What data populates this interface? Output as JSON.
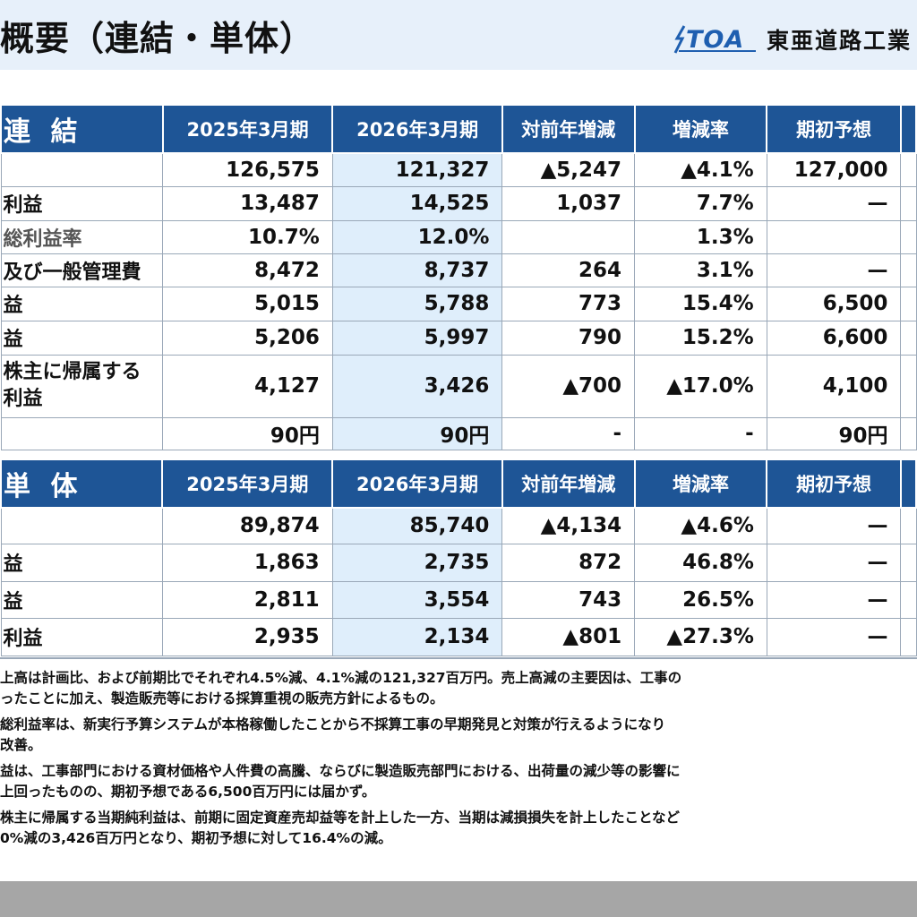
{
  "header": {
    "title": "概要（連結・単体）",
    "logo_text": "TOA",
    "company_name": "東亜道路工業"
  },
  "consolidated": {
    "section_label": "連 結",
    "columns": [
      "2025年3月期",
      "2026年3月期",
      "対前年増減",
      "増減率",
      "期初予想"
    ],
    "rows": [
      {
        "label": "",
        "values": [
          "126,575",
          "121,327",
          "▲5,247",
          "▲4.1%",
          "127,000"
        ]
      },
      {
        "label": "利益",
        "values": [
          "13,487",
          "14,525",
          "1,037",
          "7.7%",
          "—"
        ]
      },
      {
        "label": "総利益率",
        "values": [
          "10.7%",
          "12.0%",
          "",
          "1.3%",
          ""
        ]
      },
      {
        "label": "及び一般管理費",
        "values": [
          "8,472",
          "8,737",
          "264",
          "3.1%",
          "—"
        ]
      },
      {
        "label": "益",
        "values": [
          "5,015",
          "5,788",
          "773",
          "15.4%",
          "6,500"
        ]
      },
      {
        "label": "益",
        "values": [
          "5,206",
          "5,997",
          "790",
          "15.2%",
          "6,600"
        ]
      },
      {
        "label": "株主に帰属する",
        "label2": "利益",
        "values": [
          "4,127",
          "3,426",
          "▲700",
          "▲17.0%",
          "4,100"
        ]
      },
      {
        "label": "",
        "values": [
          "90円",
          "90円",
          "-",
          "-",
          "90円"
        ]
      }
    ]
  },
  "standalone": {
    "section_label": "単 体",
    "columns": [
      "2025年3月期",
      "2026年3月期",
      "対前年増減",
      "増減率",
      "期初予想"
    ],
    "rows": [
      {
        "label": "",
        "values": [
          "89,874",
          "85,740",
          "▲4,134",
          "▲4.6%",
          "—"
        ]
      },
      {
        "label": "益",
        "values": [
          "1,863",
          "2,735",
          "872",
          "46.8%",
          "—"
        ]
      },
      {
        "label": "益",
        "values": [
          "2,811",
          "3,554",
          "743",
          "26.5%",
          "—"
        ]
      },
      {
        "label": "利益",
        "values": [
          "2,935",
          "2,134",
          "▲801",
          "▲27.3%",
          "—"
        ]
      }
    ]
  },
  "notes": [
    "上高は計画比、および前期比でそれぞれ4.5%減、4.1%減の121,327百万円。売上高減の主要因は、工事の",
    "ったことに加え、製造販売等における採算重視の販売方針によるもの。",
    "総利益率は、新実行予算システムが本格稼働したことから不採算工事の早期発見と対策が行えるようになり",
    "改善。",
    "益は、工事部門における資材価格や人件費の高騰、ならびに製造販売部門における、出荷量の減少等の影響に",
    "上回ったものの、期初予想である6,500百万円には届かず。",
    "株主に帰属する当期純利益は、前期に固定資産売却益等を計上した一方、当期は減損損失を計上したことなど",
    "0%減の3,426百万円となり、期初予想に対して16.4%の減。"
  ]
}
